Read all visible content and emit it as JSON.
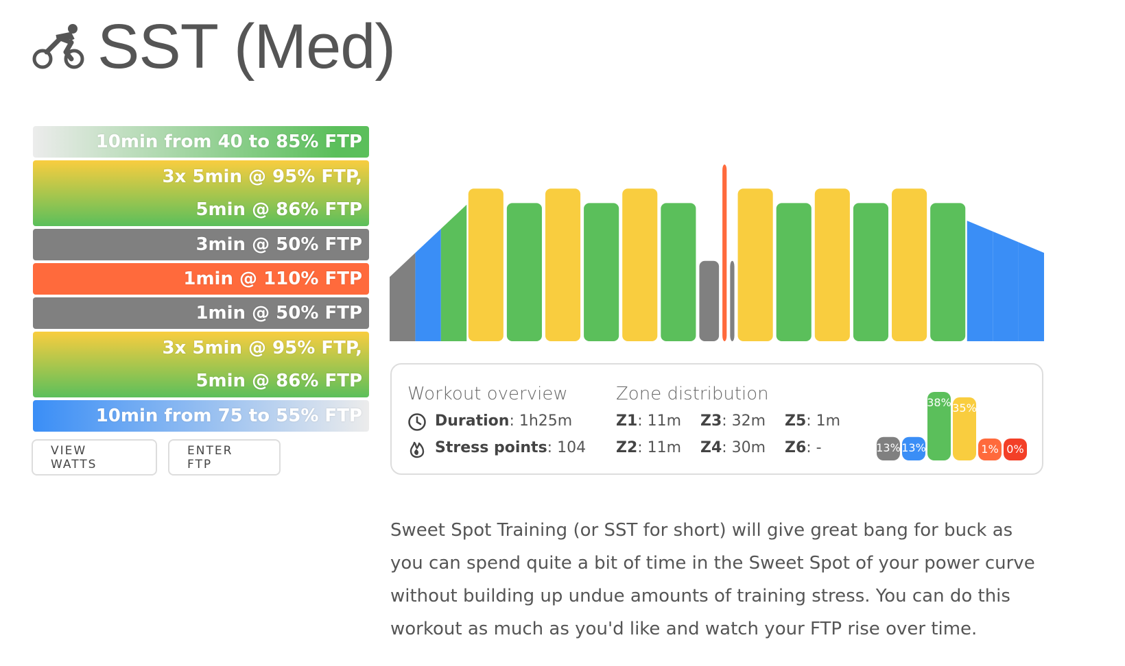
{
  "title": "SST (Med)",
  "steps": [
    {
      "lines": [
        "10min from 40 to 85% FTP"
      ],
      "bg": "linear-gradient(90deg, #ececec 0%, #5bbf5b 90%)"
    },
    {
      "lines": [
        "3x 5min @ 95% FTP,",
        "5min @ 86% FTP"
      ],
      "bg": "linear-gradient(180deg, #f9cd3f 0%, #5bbf5b 100%)"
    },
    {
      "lines": [
        "3min @ 50% FTP"
      ],
      "bg": "#808080"
    },
    {
      "lines": [
        "1min @ 110% FTP"
      ],
      "bg": "#ff6a3c"
    },
    {
      "lines": [
        "1min @ 50% FTP"
      ],
      "bg": "#808080"
    },
    {
      "lines": [
        "3x 5min @ 95% FTP,",
        "5min @ 86% FTP"
      ],
      "bg": "linear-gradient(180deg, #f9cd3f 0%, #5bbf5b 100%)"
    },
    {
      "lines": [
        "10min from 75 to 55% FTP"
      ],
      "bg": "linear-gradient(90deg, #3a8ef6 0%, #ececec 100%)"
    }
  ],
  "buttons": {
    "view_watts": "VIEW WATTS",
    "enter_ftp": "ENTER FTP"
  },
  "overview": {
    "heading": "Workout overview",
    "duration_label": "Duration",
    "duration_value": ": 1h25m",
    "stress_label": "Stress points",
    "stress_value": ": 104"
  },
  "zones": {
    "heading": "Zone distribution",
    "items": [
      {
        "label": "Z1",
        "value": ": 11m"
      },
      {
        "label": "Z2",
        "value": ": 11m"
      },
      {
        "label": "Z3",
        "value": ": 32m"
      },
      {
        "label": "Z4",
        "value": ": 30m"
      },
      {
        "label": "Z5",
        "value": ": 1m"
      },
      {
        "label": "Z6",
        "value": ": -"
      }
    ],
    "bars": [
      {
        "label": "13%",
        "value": 13,
        "color": "#808080"
      },
      {
        "label": "13%",
        "value": 13,
        "color": "#3a8ef6"
      },
      {
        "label": "38%",
        "value": 38,
        "color": "#5bbf5b"
      },
      {
        "label": "35%",
        "value": 35,
        "color": "#f9cd3f"
      },
      {
        "label": "1%",
        "value": 1,
        "color": "#ff6a3c"
      },
      {
        "label": "0%",
        "value": 0,
        "color": "#f33f27"
      }
    ]
  },
  "colors": {
    "z1": "#808080",
    "z2": "#3a8ef6",
    "z3": "#5bbf5b",
    "z4": "#f9cd3f",
    "z5": "#ff6a3c"
  },
  "workout_profile": {
    "duration_min": 85,
    "segments": [
      {
        "type": "ramp",
        "from": 40,
        "to": 85,
        "minutes": 10
      },
      {
        "type": "steady",
        "power": 95,
        "minutes": 5
      },
      {
        "type": "steady",
        "power": 86,
        "minutes": 5
      },
      {
        "type": "steady",
        "power": 95,
        "minutes": 5
      },
      {
        "type": "steady",
        "power": 86,
        "minutes": 5
      },
      {
        "type": "steady",
        "power": 95,
        "minutes": 5
      },
      {
        "type": "steady",
        "power": 86,
        "minutes": 5
      },
      {
        "type": "steady",
        "power": 50,
        "minutes": 3
      },
      {
        "type": "steady",
        "power": 110,
        "minutes": 1
      },
      {
        "type": "steady",
        "power": 50,
        "minutes": 1
      },
      {
        "type": "steady",
        "power": 95,
        "minutes": 5
      },
      {
        "type": "steady",
        "power": 86,
        "minutes": 5
      },
      {
        "type": "steady",
        "power": 95,
        "minutes": 5
      },
      {
        "type": "steady",
        "power": 86,
        "minutes": 5
      },
      {
        "type": "steady",
        "power": 95,
        "minutes": 5
      },
      {
        "type": "steady",
        "power": 86,
        "minutes": 5
      },
      {
        "type": "ramp",
        "from": 75,
        "to": 55,
        "minutes": 10
      }
    ]
  },
  "description": "Sweet Spot Training (or SST for short) will give great bang for buck as you can spend quite a bit of time in the Sweet Spot of your power curve without building up undue amounts of training stress. You can do this workout as much as you'd like and watch your FTP rise over time."
}
